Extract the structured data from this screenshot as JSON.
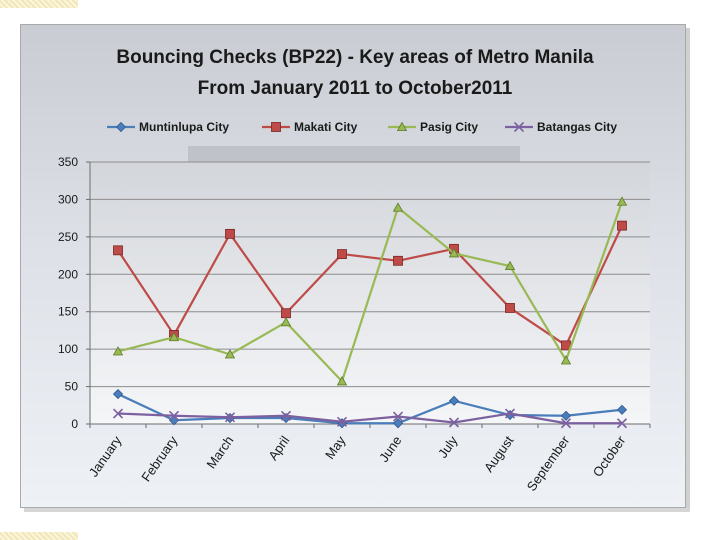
{
  "chart_data": {
    "type": "line",
    "title": "Bouncing Checks  (BP22) - Key areas of Metro Manila",
    "subtitle": "From January 2011 to October2011",
    "xlabel": "",
    "ylabel": "",
    "ylim": [
      0,
      350
    ],
    "yticks": [
      0,
      50,
      100,
      150,
      200,
      250,
      300,
      350
    ],
    "grid": true,
    "legend": "top",
    "categories": [
      "January",
      "February",
      "March",
      "April",
      "May",
      "June",
      "July",
      "August",
      "September",
      "October"
    ],
    "series": [
      {
        "name": "Muntinlupa City",
        "color": "#4a7ebb",
        "marker": "diamond",
        "values": [
          40,
          5,
          8,
          8,
          1,
          1,
          31,
          12,
          11,
          19
        ]
      },
      {
        "name": "Makati City",
        "color": "#be4b48",
        "marker": "square",
        "values": [
          232,
          119,
          254,
          148,
          227,
          218,
          234,
          155,
          105,
          265
        ]
      },
      {
        "name": "Pasig City",
        "color": "#98b954",
        "marker": "triangle",
        "values": [
          97,
          116,
          93,
          136,
          57,
          289,
          228,
          211,
          85,
          297
        ]
      },
      {
        "name": "Batangas City",
        "color": "#7d60a0",
        "marker": "x",
        "values": [
          14,
          11,
          9,
          11,
          3,
          10,
          2,
          14,
          1,
          1
        ]
      }
    ]
  }
}
